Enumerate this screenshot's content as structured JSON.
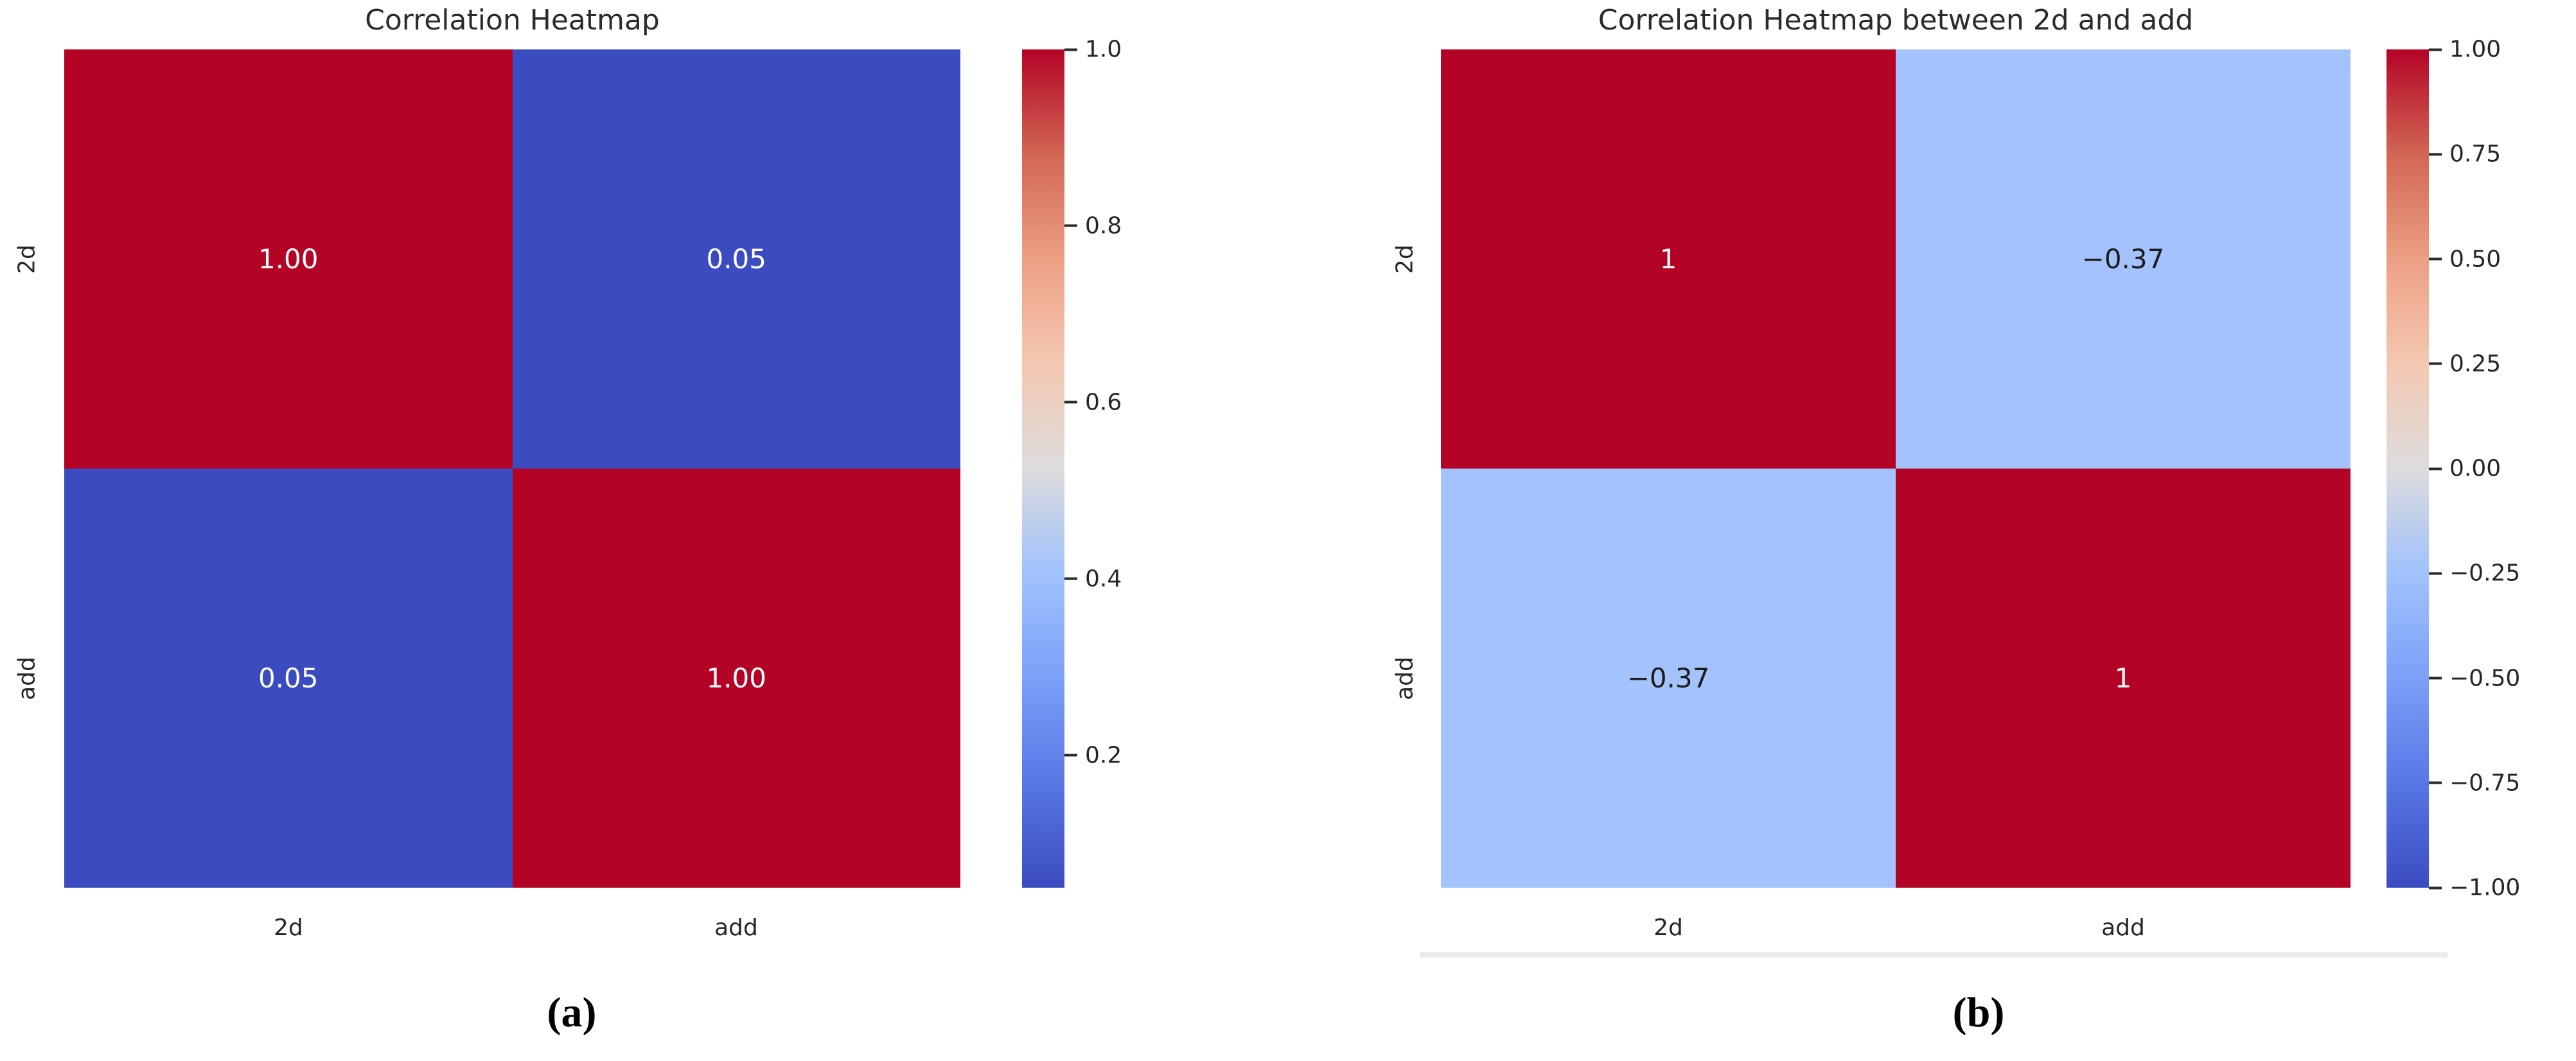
{
  "chart_data": [
    {
      "type": "heatmap",
      "title": "Correlation Heatmap",
      "x": [
        "2d",
        "add"
      ],
      "y": [
        "2d",
        "add"
      ],
      "values": [
        [
          1.0,
          0.05
        ],
        [
          0.05,
          1.0
        ]
      ],
      "value_labels": [
        [
          "1.00",
          "0.05"
        ],
        [
          "0.05",
          "1.00"
        ]
      ],
      "colormap": "coolwarm",
      "vmin": 0.05,
      "vmax": 1.0,
      "colorbar_ticks": [
        1.0,
        0.8,
        0.6,
        0.4,
        0.2
      ],
      "colorbar_position": "right",
      "grid": false,
      "caption": "(a)"
    },
    {
      "type": "heatmap",
      "title": "Correlation Heatmap between 2d and add",
      "x": [
        "2d",
        "add"
      ],
      "y": [
        "2d",
        "add"
      ],
      "values": [
        [
          1,
          -0.37
        ],
        [
          -0.37,
          1
        ]
      ],
      "value_labels": [
        [
          "1",
          "−0.37"
        ],
        [
          "−0.37",
          "1"
        ]
      ],
      "colormap": "coolwarm",
      "vmin": -1.0,
      "vmax": 1.0,
      "colorbar_ticks": [
        1.0,
        0.75,
        0.5,
        0.25,
        0.0,
        -0.25,
        -0.5,
        -0.75,
        -1.0
      ],
      "colorbar_position": "right",
      "grid": false,
      "caption": "(b)"
    }
  ],
  "figures": [
    {
      "title": "Correlation Heatmap",
      "caption": "(a)",
      "row_labels": [
        "2d",
        "add"
      ],
      "col_labels": [
        "2d",
        "add"
      ],
      "cells": [
        [
          "1.00",
          "0.05"
        ],
        [
          "0.05",
          "1.00"
        ]
      ],
      "colorbar_tick_labels": [
        "1.0",
        "0.8",
        "0.6",
        "0.4",
        "0.2"
      ]
    },
    {
      "title": "Correlation Heatmap between 2d and add",
      "caption": "(b)",
      "row_labels": [
        "2d",
        "add"
      ],
      "col_labels": [
        "2d",
        "add"
      ],
      "cells": [
        [
          "1",
          "−0.37"
        ],
        [
          "−0.37",
          "1"
        ]
      ],
      "colorbar_tick_labels": [
        "1.00",
        "0.75",
        "0.50",
        "0.25",
        "0.00",
        "−0.25",
        "−0.50",
        "−0.75",
        "−1.00"
      ]
    }
  ],
  "colors": {
    "strong_red": "#b40426",
    "strong_blue": "#3b4cc0",
    "light_blue": "#a4c2fb",
    "annotation_white": "#ffffff",
    "annotation_dark": "#1c1c1c",
    "text": "#262626",
    "background": "#ffffff"
  }
}
